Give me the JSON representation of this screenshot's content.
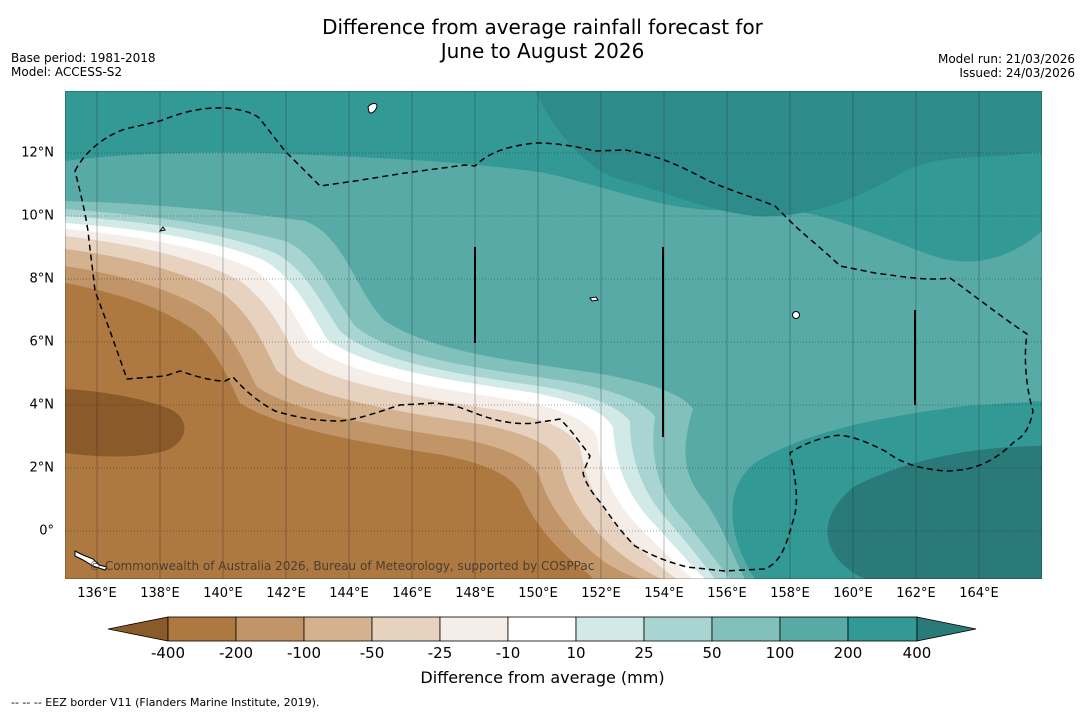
{
  "title": {
    "line1": "Difference from average rainfall forecast for",
    "line2": "June to August 2026"
  },
  "meta_left": {
    "base_period": "Base period: 1981-2018",
    "model": "Model: ACCESS-S2"
  },
  "meta_right": {
    "model_run": "Model run: 21/03/2026",
    "issued": "Issued: 24/03/2026"
  },
  "axes": {
    "x_labels": [
      "136°E",
      "138°E",
      "140°E",
      "142°E",
      "144°E",
      "146°E",
      "148°E",
      "150°E",
      "152°E",
      "154°E",
      "156°E",
      "158°E",
      "160°E",
      "162°E",
      "164°E"
    ],
    "y_labels": [
      "12°N",
      "10°N",
      "8°N",
      "6°N",
      "4°N",
      "2°N",
      "0°"
    ]
  },
  "copyright": "© Commonwealth of Australia 2026, Bureau of Meteorology, supported by COSPPac",
  "colorbar": {
    "title": "Difference from average (mm)",
    "labels": [
      "-400",
      "-200",
      "-100",
      "-50",
      "-25",
      "-10",
      "10",
      "25",
      "50",
      "100",
      "200",
      "400"
    ],
    "colors": {
      "below_min": "#8b5a2b",
      "n400_n200": "#ae7841",
      "n200_n100": "#c19567",
      "n100_n50": "#d4b290",
      "n50_n25": "#e6d2be",
      "n25_n10": "#f5ede8",
      "n10_10": "#ffffff",
      "p10_25": "#d1eae7",
      "p25_50": "#a8d5d1",
      "p50_100": "#82c0bc",
      "p100_200": "#58aaa7",
      "p200_400": "#339995",
      "above_max": "#2a7a7a"
    }
  },
  "footnote": "-- -- -- EEZ border V11 (Flanders Marine Institute, 2019)."
}
